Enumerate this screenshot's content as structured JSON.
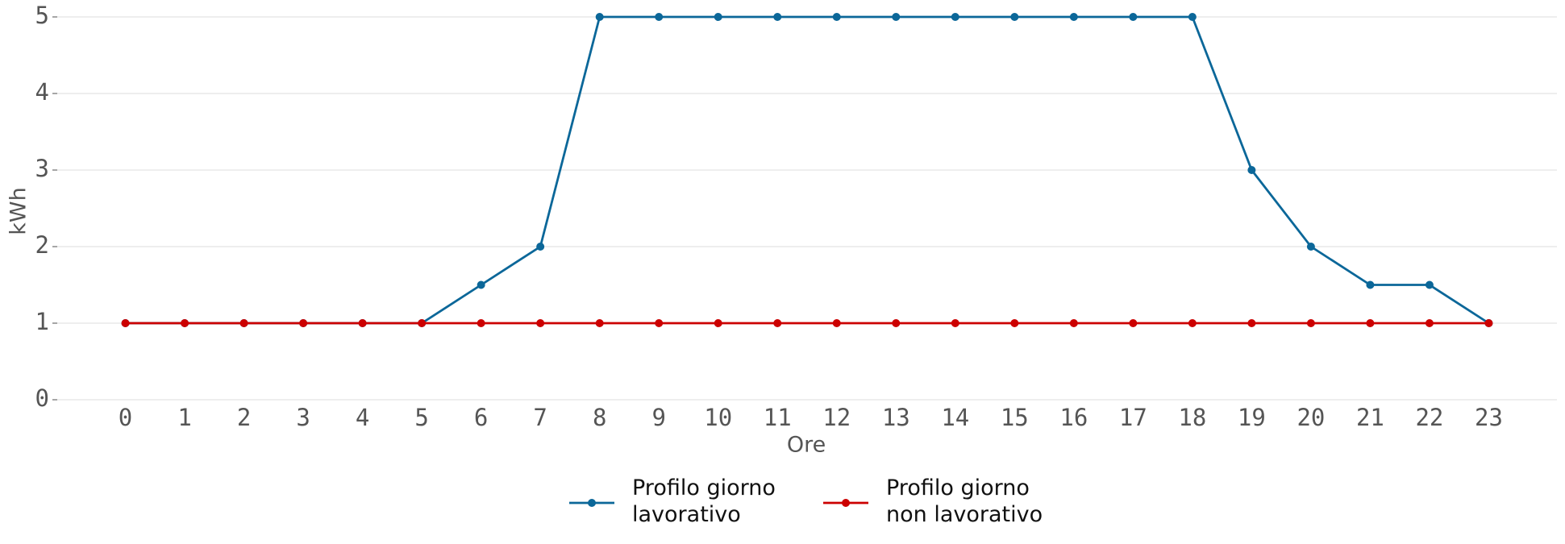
{
  "chart_data": {
    "type": "line",
    "x_label": "Ore",
    "y_label": "kWh",
    "x": [
      0,
      1,
      2,
      3,
      4,
      5,
      6,
      7,
      8,
      9,
      10,
      11,
      12,
      13,
      14,
      15,
      16,
      17,
      18,
      19,
      20,
      21,
      22,
      23
    ],
    "series": [
      {
        "name": "Profilo giorno\nlavorativo",
        "color": "#0b6799",
        "values": [
          1,
          1,
          1,
          1,
          1,
          1,
          1.5,
          2,
          5,
          5,
          5,
          5,
          5,
          5,
          5,
          5,
          5,
          5,
          5,
          3,
          2,
          1.5,
          1.5,
          1
        ]
      },
      {
        "name": "Profilo giorno\nnon lavorativo",
        "color": "#cc0000",
        "values": [
          1,
          1,
          1,
          1,
          1,
          1,
          1,
          1,
          1,
          1,
          1,
          1,
          1,
          1,
          1,
          1,
          1,
          1,
          1,
          1,
          1,
          1,
          1,
          1
        ]
      }
    ],
    "xlim": [
      -1.15,
      24.15
    ],
    "ylim": [
      0,
      5
    ],
    "xticks": [
      0,
      1,
      2,
      3,
      4,
      5,
      6,
      7,
      8,
      9,
      10,
      11,
      12,
      13,
      14,
      15,
      16,
      17,
      18,
      19,
      20,
      21,
      22,
      23
    ],
    "yticks": [
      0,
      1,
      2,
      3,
      4,
      5
    ],
    "grid": true,
    "legend": "bottom"
  }
}
